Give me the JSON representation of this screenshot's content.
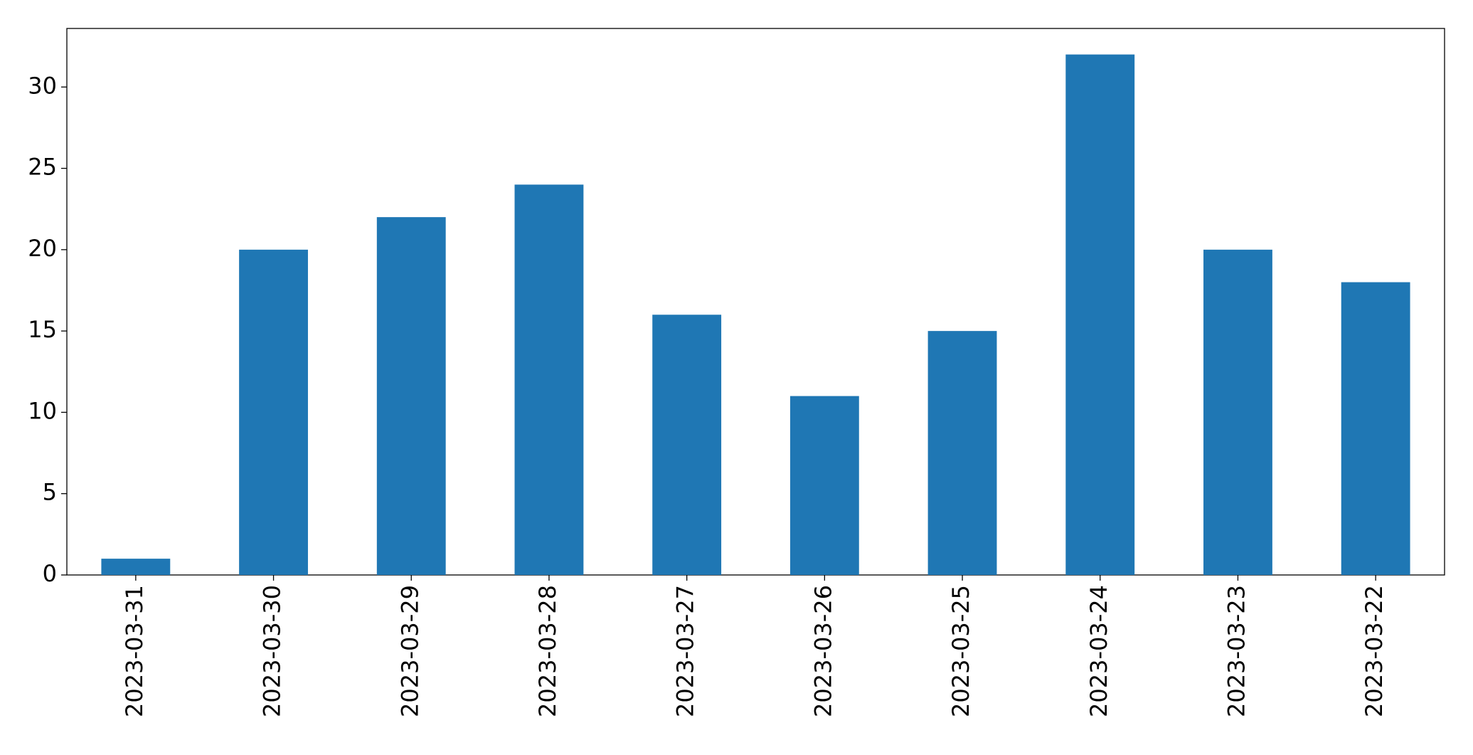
{
  "chart_data": {
    "type": "bar",
    "categories": [
      "2023-03-31",
      "2023-03-30",
      "2023-03-29",
      "2023-03-28",
      "2023-03-27",
      "2023-03-26",
      "2023-03-25",
      "2023-03-24",
      "2023-03-23",
      "2023-03-22"
    ],
    "values": [
      1,
      20,
      22,
      24,
      16,
      11,
      15,
      32,
      20,
      18
    ],
    "color": "#1f77b4",
    "ylim": [
      0,
      33.6
    ],
    "yticks": [
      0,
      5,
      10,
      15,
      20,
      25,
      30
    ],
    "grid": false
  }
}
